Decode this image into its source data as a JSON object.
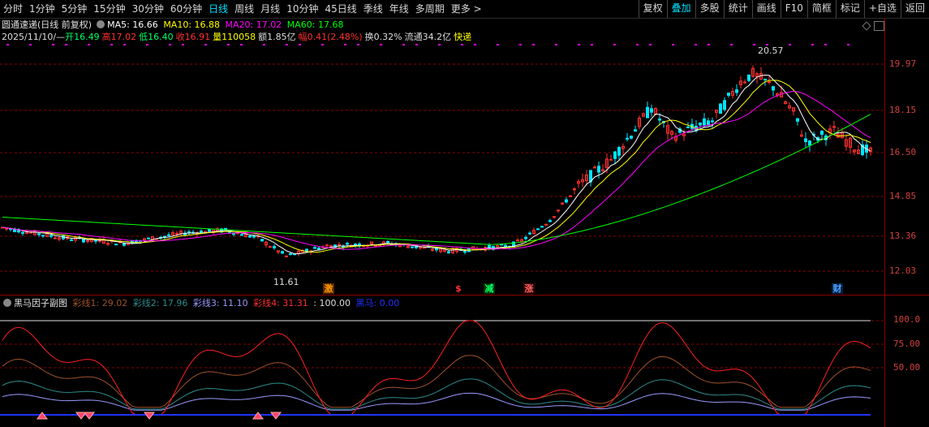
{
  "toolbar": {
    "periods": [
      "分时",
      "1分钟",
      "5分钟",
      "15分钟",
      "30分钟",
      "60分钟",
      "日线",
      "周线",
      "月线",
      "10分钟",
      "45日线",
      "季线",
      "年线",
      "多周期",
      "更多 >"
    ],
    "active_period": "日线",
    "buttons": [
      "复权",
      "叠加",
      "多股",
      "统计",
      "画线",
      "F10",
      "简框",
      "标记",
      "+自选",
      "返回"
    ],
    "active_button": "叠加"
  },
  "header": {
    "stock_name": "圆通速递(日线 前复权)",
    "ma5": "MA5: 16.66",
    "ma10": "MA10: 16.88",
    "ma20": "MA20: 17.02",
    "ma60": "MA60: 17.68",
    "date": "2025/11/10/—",
    "open": "开16.49",
    "high": "高17.02",
    "low": "低16.40",
    "close": "收16.91",
    "volume": "量110058",
    "amount": "额1.85亿",
    "change": "幅0.41(2.48%)",
    "turnover": "换0.32%",
    "float_cap": "流通34.2亿",
    "tag": "快递"
  },
  "colors": {
    "up": "#ff3030",
    "down": "#00e5ff",
    "ma5": "#ffffff",
    "ma10": "#ffff00",
    "ma20": "#ff00ff",
    "ma60": "#00ff00",
    "grid": "#8b0000"
  },
  "price_axis": [
    "19.97",
    "18.15",
    "16.50",
    "14.85",
    "13.36",
    "12.03"
  ],
  "price_annotations": {
    "high": "20.57",
    "low": "11.61"
  },
  "signals": [
    {
      "text": "激",
      "color": "#ff9800",
      "bg": "#5a2a00"
    },
    {
      "text": "$",
      "color": "#ff3030",
      "bg": "none"
    },
    {
      "text": "减",
      "color": "#00ff66",
      "bg": "#003300"
    },
    {
      "text": "涨",
      "color": "#ff6666",
      "bg": "#330000"
    },
    {
      "text": "财",
      "color": "#4aa0ff",
      "bg": "#002244"
    }
  ],
  "sub_panel": {
    "title": "黑马因子副图",
    "cl1": "彩线1: 29.02",
    "cl2": "彩线2: 17.96",
    "cl3": "彩线3: 11.10",
    "cl4": "彩线4: 31.31",
    "ref": ": 100.00",
    "hm": "黑马: 0.00",
    "axis": [
      "100.0",
      "75.00",
      "50.00"
    ]
  }
}
